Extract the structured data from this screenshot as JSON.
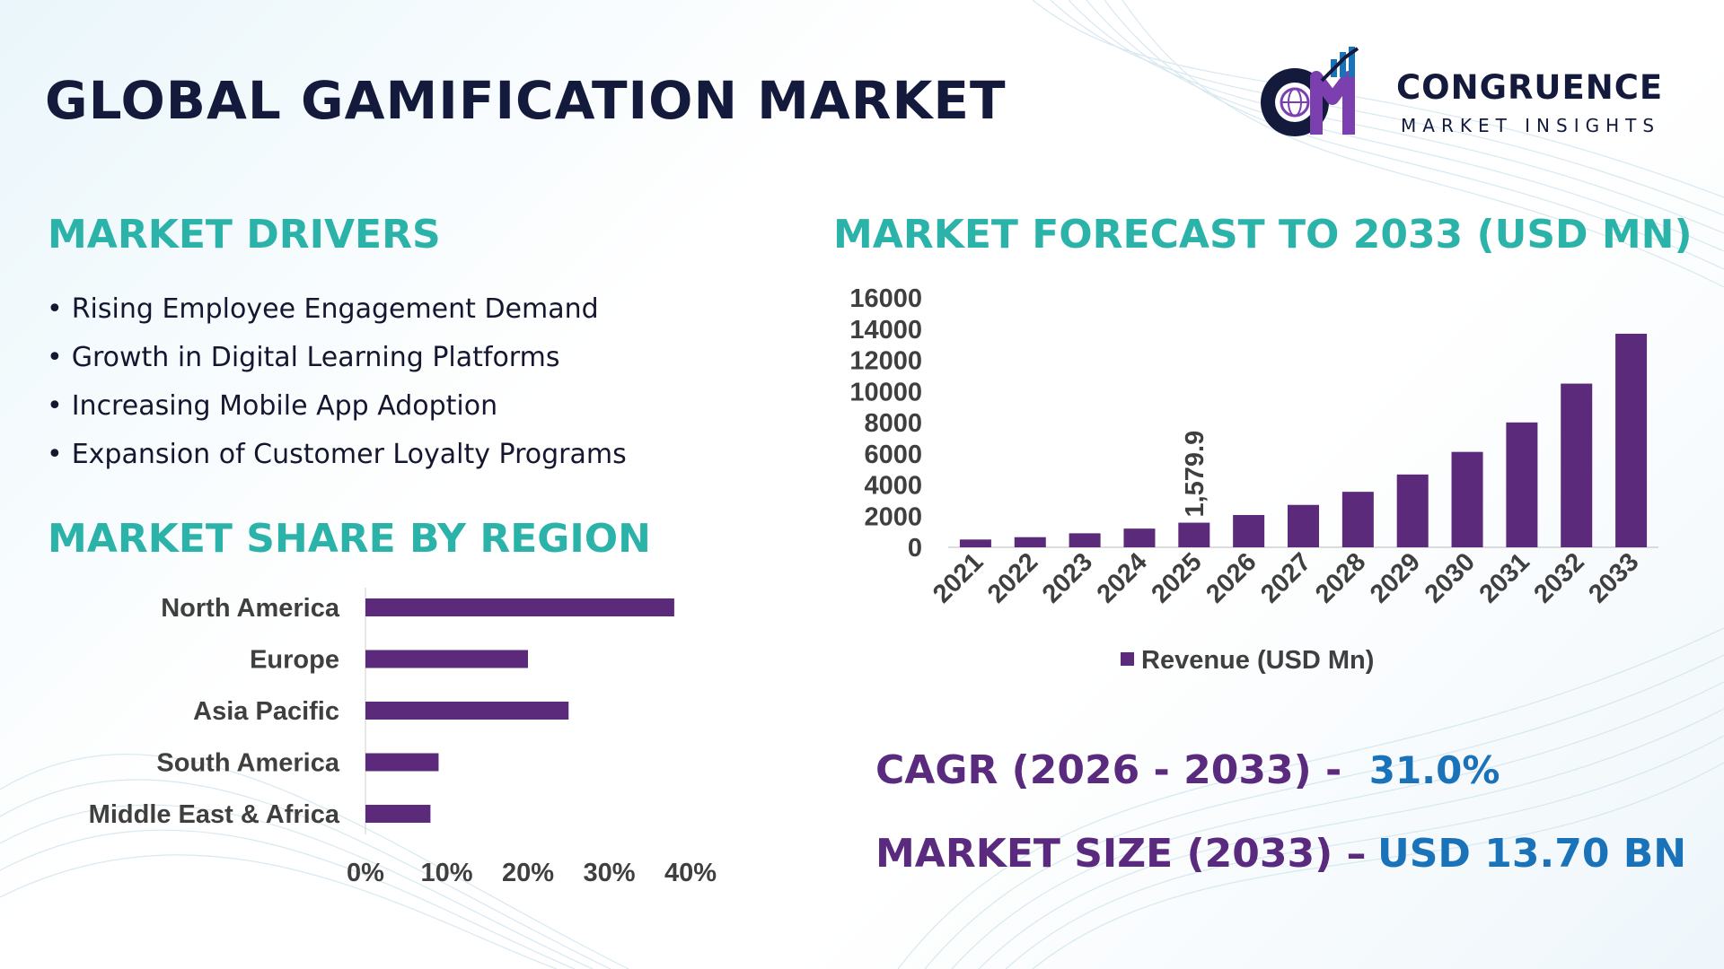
{
  "title": "GLOBAL GAMIFICATION MARKET",
  "logo": {
    "name": "CONGRUENCE",
    "subtitle": "MARKET INSIGHTS",
    "icon": "cmi-globe-chart-logo"
  },
  "colors": {
    "bar": "#5b2a7b",
    "teal": "#2bb3a9",
    "purple_text": "#5a2a7e",
    "blue_text": "#1a73b8",
    "title": "#141a3c"
  },
  "drivers": {
    "heading": "MARKET DRIVERS",
    "items": [
      "Rising Employee Engagement Demand",
      "Growth in Digital Learning Platforms",
      "Increasing Mobile App Adoption",
      "Expansion of Customer Loyalty Programs"
    ]
  },
  "region": {
    "heading": "MARKET SHARE BY REGION"
  },
  "forecast": {
    "heading": "MARKET FORECAST TO 2033 (USD MN)"
  },
  "chart_data": [
    {
      "type": "bar",
      "orientation": "horizontal",
      "categories": [
        "North America",
        "Europe",
        "Asia Pacific",
        "South America",
        "Middle East & Africa"
      ],
      "values": [
        0.38,
        0.2,
        0.25,
        0.09,
        0.08
      ],
      "xlim": [
        0,
        0.4
      ],
      "x_ticks": [
        "0%",
        "10%",
        "20%",
        "30%",
        "40%"
      ],
      "grid": false
    },
    {
      "type": "bar",
      "orientation": "vertical",
      "categories": [
        "2021",
        "2022",
        "2023",
        "2024",
        "2025",
        "2026",
        "2027",
        "2028",
        "2029",
        "2030",
        "2031",
        "2032",
        "2033"
      ],
      "series": [
        {
          "name": "Revenue (USD Mn)",
          "values": [
            500,
            650,
            900,
            1200,
            1579.9,
            2070,
            2720,
            3560,
            4670,
            6120,
            8010,
            10500,
            13700
          ]
        }
      ],
      "ylim": [
        0,
        16000
      ],
      "y_ticks": [
        "0",
        "2000",
        "4000",
        "6000",
        "8000",
        "10000",
        "12000",
        "14000",
        "16000"
      ],
      "data_labels": [
        {
          "category": "2025",
          "text": "1,579.9"
        }
      ],
      "legend": "bottom-center",
      "grid": false
    }
  ],
  "summary": {
    "cagr_label": "CAGR (2026 - 2033) -",
    "cagr_value": "31.0%",
    "size_label": "MARKET SIZE (2033) –",
    "size_value": "USD 13.70 BN"
  }
}
